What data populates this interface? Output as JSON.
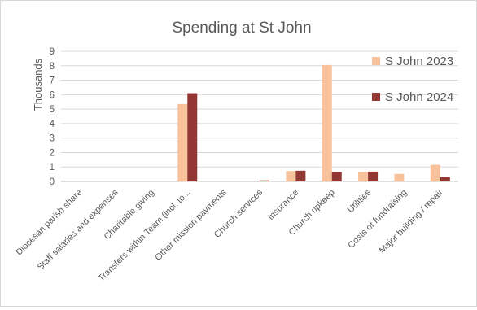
{
  "chart_data": {
    "type": "bar",
    "title": "Spending at St John",
    "ylabel": "Thousands",
    "xlabel": "",
    "ylim": [
      0,
      9
    ],
    "yticks": [
      "0",
      "1",
      "2",
      "3",
      "4",
      "5",
      "6",
      "7",
      "8",
      "9"
    ],
    "grid": true,
    "legend_position": "right",
    "categories": [
      "Diocesan parish share",
      "Staff salaries and expenses",
      "Charitable giving",
      "Transfers within Team (incl. to...",
      "Other mission payments",
      "Church services",
      "Insurance",
      "Church upkeep",
      "Utilities",
      "Costs of fundraising",
      "Major building / repair"
    ],
    "series": [
      {
        "name": "S John 2023",
        "color": "#F8C39C",
        "values": [
          0,
          0,
          0,
          5.35,
          0,
          0,
          0.72,
          8.05,
          0.65,
          0.52,
          1.15
        ]
      },
      {
        "name": "S John 2024",
        "color": "#943634",
        "values": [
          0,
          0,
          0,
          6.1,
          0,
          0.07,
          0.74,
          0.65,
          0.68,
          0,
          0.3
        ]
      }
    ]
  }
}
